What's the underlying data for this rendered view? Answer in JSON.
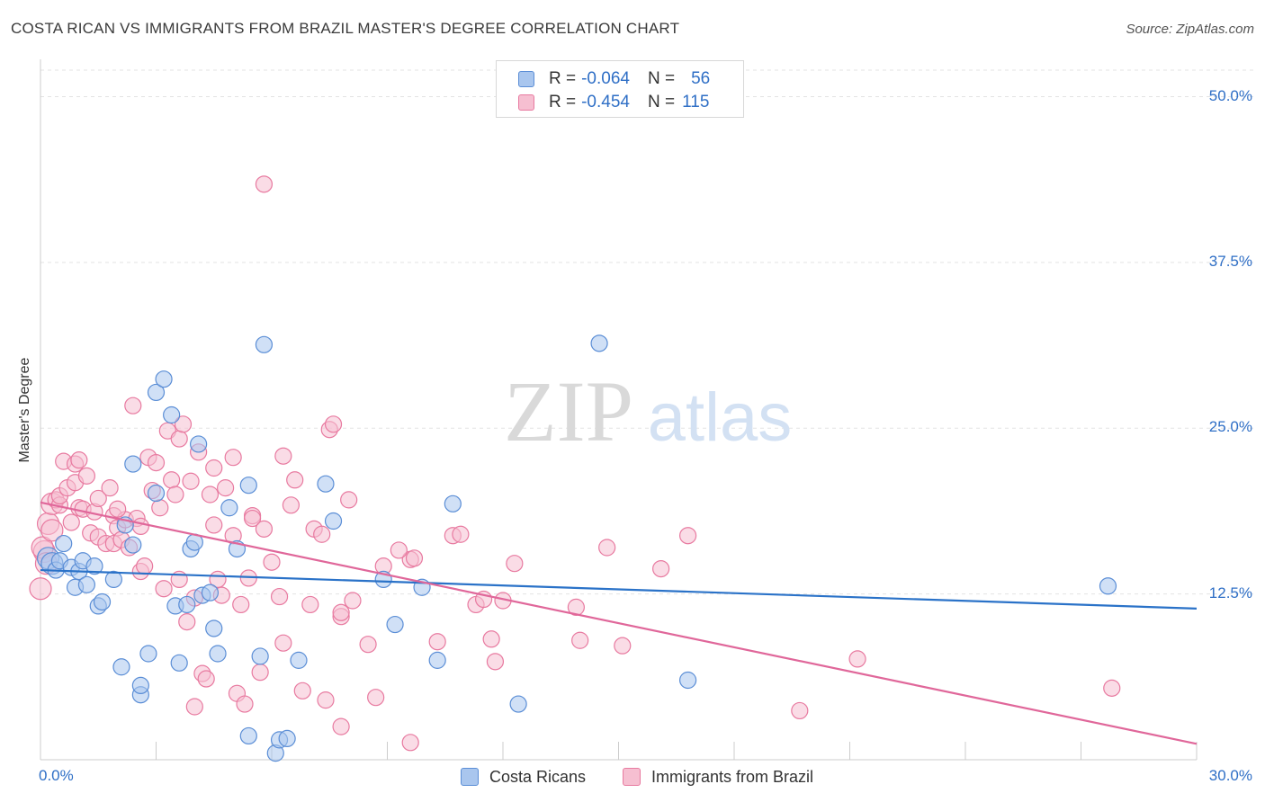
{
  "title": "COSTA RICAN VS IMMIGRANTS FROM BRAZIL MASTER'S DEGREE CORRELATION CHART",
  "source": "Source: ZipAtlas.com",
  "watermark": {
    "zip": "ZIP",
    "atlas": "atlas"
  },
  "legend_top": {
    "r_label": "R =",
    "n_label": "N =",
    "rows": [
      {
        "r": "-0.064",
        "n": "56"
      },
      {
        "r": "-0.454",
        "n": "115"
      }
    ]
  },
  "chart_data": {
    "type": "scatter",
    "title": "COSTA RICAN VS IMMIGRANTS FROM BRAZIL MASTER'S DEGREE CORRELATION CHART",
    "xlabel": "",
    "ylabel": "Master's Degree",
    "xlim": [
      0,
      30
    ],
    "ylim": [
      0,
      52
    ],
    "x_tick_labels": [
      "0.0%",
      "30.0%"
    ],
    "y_ticks": [
      12.5,
      25.0,
      37.5,
      50.0
    ],
    "y_tick_labels": [
      "12.5%",
      "25.0%",
      "37.5%",
      "50.0%"
    ],
    "colors": {
      "costa": "#5b8ed6",
      "costa_fill": "#a9c6ee",
      "brazil": "#e87aa0",
      "brazil_fill": "#f6bfd1",
      "costa_line": "#2a72c8",
      "brazil_line": "#e0679a",
      "tick_text": "#2f6fc6"
    },
    "series": [
      {
        "name": "Costa Ricans",
        "r": -0.064,
        "n": 56,
        "trend": {
          "x0": 0,
          "y0": 14.3,
          "x1": 30,
          "y1": 11.4
        },
        "points": [
          [
            0.2,
            15.2
          ],
          [
            0.3,
            14.8
          ],
          [
            0.4,
            14.3
          ],
          [
            0.5,
            15.0
          ],
          [
            0.6,
            16.3
          ],
          [
            0.8,
            14.5
          ],
          [
            0.9,
            13.0
          ],
          [
            1.0,
            14.2
          ],
          [
            1.1,
            15.0
          ],
          [
            1.2,
            13.2
          ],
          [
            1.4,
            14.6
          ],
          [
            1.5,
            11.6
          ],
          [
            1.6,
            11.9
          ],
          [
            1.9,
            13.6
          ],
          [
            2.1,
            7.0
          ],
          [
            2.2,
            17.7
          ],
          [
            2.4,
            16.2
          ],
          [
            2.4,
            22.3
          ],
          [
            2.6,
            4.9
          ],
          [
            2.6,
            5.6
          ],
          [
            2.8,
            8.0
          ],
          [
            3.0,
            20.1
          ],
          [
            3.0,
            27.7
          ],
          [
            3.2,
            28.7
          ],
          [
            3.4,
            26.0
          ],
          [
            3.5,
            11.6
          ],
          [
            3.6,
            7.3
          ],
          [
            3.8,
            11.7
          ],
          [
            3.9,
            15.9
          ],
          [
            4.0,
            16.4
          ],
          [
            4.1,
            23.8
          ],
          [
            4.2,
            12.4
          ],
          [
            4.4,
            12.6
          ],
          [
            4.5,
            9.9
          ],
          [
            4.6,
            8.0
          ],
          [
            4.9,
            19.0
          ],
          [
            5.1,
            15.9
          ],
          [
            5.4,
            20.7
          ],
          [
            5.4,
            1.8
          ],
          [
            5.7,
            7.8
          ],
          [
            5.8,
            31.3
          ],
          [
            6.1,
            0.5
          ],
          [
            6.2,
            1.5
          ],
          [
            6.4,
            1.6
          ],
          [
            6.7,
            7.5
          ],
          [
            7.4,
            20.8
          ],
          [
            7.6,
            18.0
          ],
          [
            8.9,
            13.6
          ],
          [
            9.2,
            10.2
          ],
          [
            9.9,
            13.0
          ],
          [
            10.3,
            7.5
          ],
          [
            10.7,
            19.3
          ],
          [
            12.4,
            4.2
          ],
          [
            14.5,
            31.4
          ],
          [
            16.8,
            6.0
          ],
          [
            27.7,
            13.1
          ]
        ],
        "marker_sizes_note": "first few points drawn larger near origin"
      },
      {
        "name": "Immigrants from Brazil",
        "r": -0.454,
        "n": 115,
        "trend": {
          "x0": 0,
          "y0": 19.4,
          "x1": 30,
          "y1": 1.2
        },
        "points": [
          [
            0.0,
            12.9
          ],
          [
            0.1,
            15.7
          ],
          [
            0.2,
            17.8
          ],
          [
            0.3,
            19.3
          ],
          [
            0.4,
            19.6
          ],
          [
            0.5,
            19.2
          ],
          [
            0.5,
            19.9
          ],
          [
            0.6,
            22.5
          ],
          [
            0.7,
            20.5
          ],
          [
            0.8,
            17.9
          ],
          [
            0.9,
            20.9
          ],
          [
            0.9,
            22.3
          ],
          [
            1.0,
            19.0
          ],
          [
            1.1,
            18.9
          ],
          [
            1.2,
            21.4
          ],
          [
            1.3,
            17.1
          ],
          [
            1.4,
            18.7
          ],
          [
            1.5,
            19.7
          ],
          [
            1.5,
            16.8
          ],
          [
            1.7,
            16.3
          ],
          [
            1.8,
            20.5
          ],
          [
            1.9,
            18.4
          ],
          [
            1.9,
            16.3
          ],
          [
            2.0,
            17.5
          ],
          [
            2.1,
            16.6
          ],
          [
            2.2,
            18.1
          ],
          [
            2.3,
            16.0
          ],
          [
            2.4,
            26.7
          ],
          [
            2.5,
            18.2
          ],
          [
            2.6,
            17.6
          ],
          [
            2.6,
            14.2
          ],
          [
            2.7,
            14.6
          ],
          [
            2.8,
            22.8
          ],
          [
            2.9,
            20.3
          ],
          [
            3.0,
            22.4
          ],
          [
            3.1,
            19.0
          ],
          [
            3.2,
            12.9
          ],
          [
            3.3,
            24.8
          ],
          [
            3.4,
            21.1
          ],
          [
            3.5,
            20.0
          ],
          [
            3.6,
            24.2
          ],
          [
            3.6,
            13.6
          ],
          [
            3.7,
            25.3
          ],
          [
            3.8,
            10.4
          ],
          [
            3.9,
            21.0
          ],
          [
            4.0,
            12.2
          ],
          [
            4.0,
            4.0
          ],
          [
            4.1,
            23.2
          ],
          [
            4.2,
            6.5
          ],
          [
            4.3,
            6.1
          ],
          [
            4.4,
            20.0
          ],
          [
            4.5,
            22.0
          ],
          [
            4.5,
            17.7
          ],
          [
            4.6,
            13.6
          ],
          [
            4.7,
            12.4
          ],
          [
            4.8,
            20.5
          ],
          [
            5.0,
            16.9
          ],
          [
            5.0,
            22.8
          ],
          [
            5.1,
            5.0
          ],
          [
            5.2,
            11.7
          ],
          [
            5.3,
            4.2
          ],
          [
            5.4,
            13.7
          ],
          [
            5.5,
            18.4
          ],
          [
            5.5,
            18.2
          ],
          [
            5.7,
            6.6
          ],
          [
            5.8,
            17.4
          ],
          [
            5.8,
            43.4
          ],
          [
            6.0,
            14.9
          ],
          [
            6.2,
            12.3
          ],
          [
            6.3,
            8.8
          ],
          [
            6.3,
            22.9
          ],
          [
            6.5,
            19.2
          ],
          [
            6.6,
            21.1
          ],
          [
            6.8,
            5.2
          ],
          [
            7.0,
            11.7
          ],
          [
            7.1,
            17.4
          ],
          [
            7.3,
            17.0
          ],
          [
            7.4,
            4.5
          ],
          [
            7.5,
            24.9
          ],
          [
            7.6,
            25.3
          ],
          [
            7.8,
            2.5
          ],
          [
            7.8,
            10.8
          ],
          [
            7.8,
            11.1
          ],
          [
            8.0,
            19.6
          ],
          [
            8.1,
            12.0
          ],
          [
            8.5,
            8.7
          ],
          [
            8.7,
            4.7
          ],
          [
            8.9,
            14.6
          ],
          [
            9.6,
            1.3
          ],
          [
            9.6,
            15.1
          ],
          [
            9.7,
            15.2
          ],
          [
            10.3,
            8.9
          ],
          [
            10.7,
            16.9
          ],
          [
            10.9,
            17.0
          ],
          [
            11.3,
            11.7
          ],
          [
            11.5,
            12.1
          ],
          [
            11.7,
            9.1
          ],
          [
            11.8,
            7.4
          ],
          [
            12.3,
            14.8
          ],
          [
            14.0,
            9.0
          ],
          [
            14.7,
            16.0
          ],
          [
            15.1,
            8.6
          ],
          [
            16.1,
            14.4
          ],
          [
            16.8,
            16.9
          ],
          [
            19.7,
            3.7
          ],
          [
            21.2,
            7.6
          ],
          [
            27.8,
            5.4
          ],
          [
            0.05,
            16.0
          ],
          [
            0.15,
            14.8
          ],
          [
            0.3,
            17.3
          ],
          [
            1.0,
            22.6
          ],
          [
            2.0,
            18.9
          ],
          [
            9.3,
            15.8
          ],
          [
            12.0,
            12.0
          ],
          [
            13.9,
            11.5
          ]
        ]
      }
    ]
  }
}
